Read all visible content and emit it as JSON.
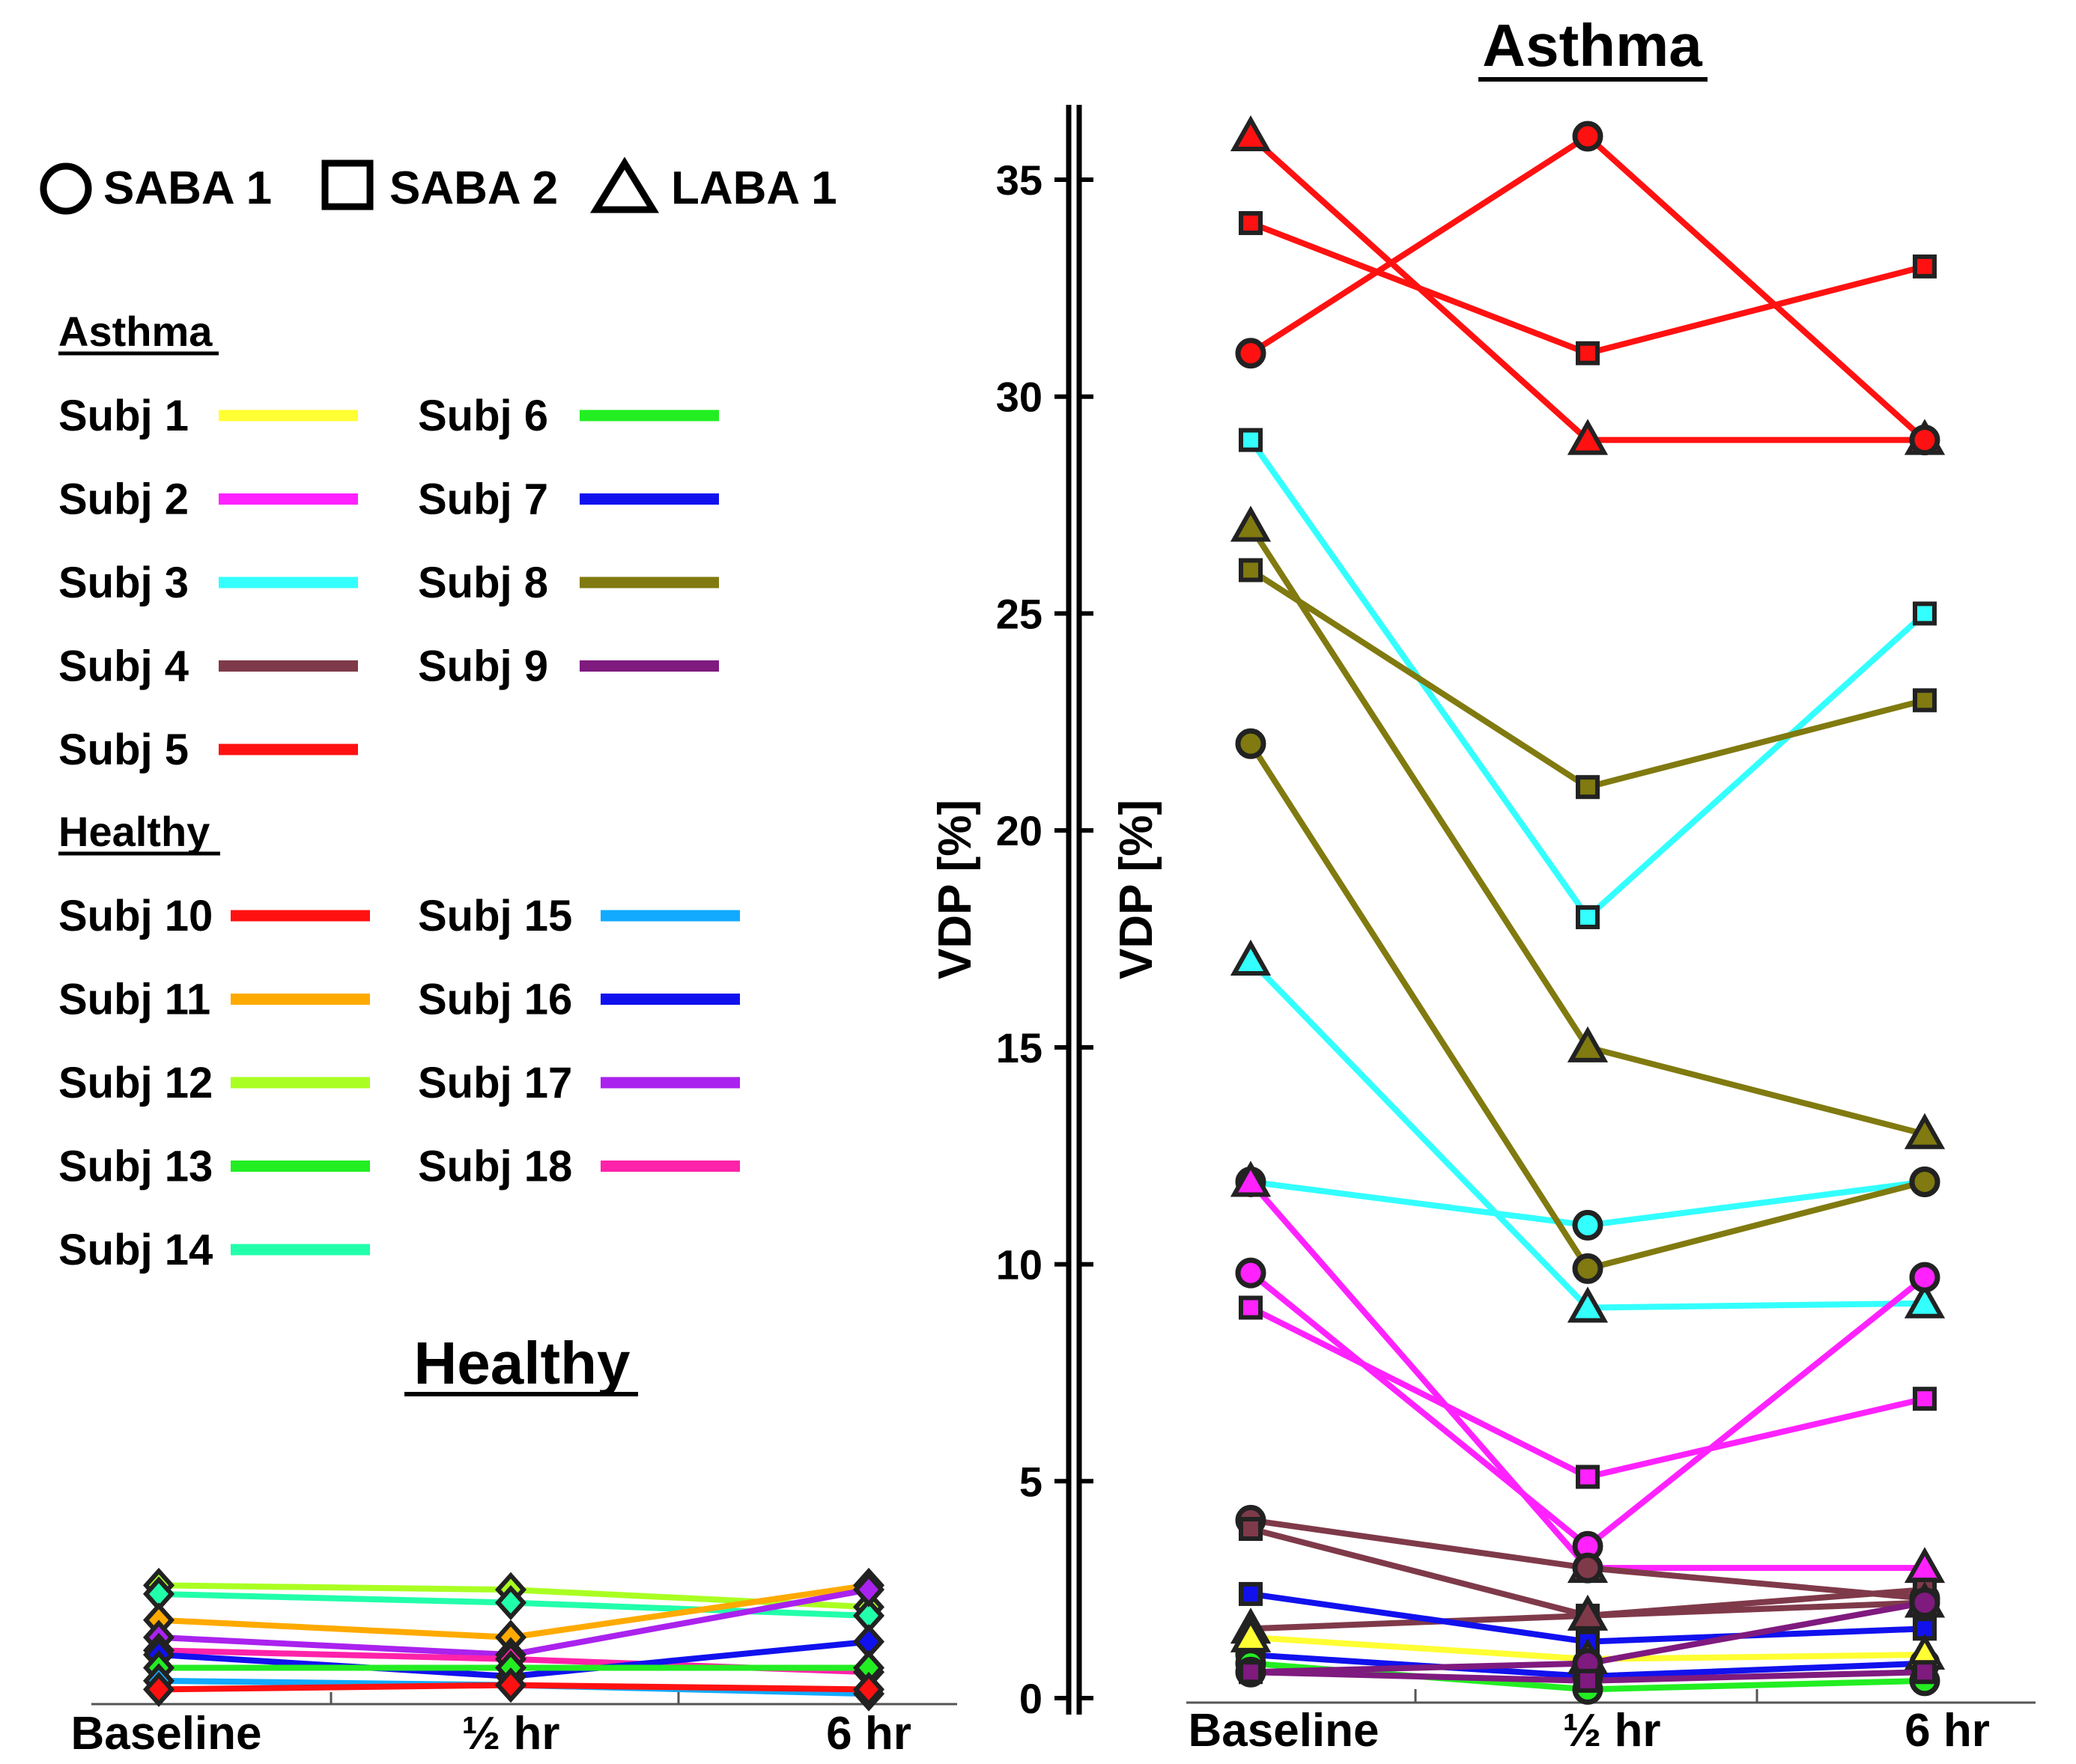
{
  "legend": {
    "markers": [
      {
        "shape": "circle",
        "label": "SABA 1"
      },
      {
        "shape": "square",
        "label": "SABA 2"
      },
      {
        "shape": "triangle",
        "label": "LABA 1"
      }
    ],
    "asthma_heading": "Asthma",
    "healthy_heading": "Healthy",
    "asthma_subjects": [
      {
        "label": "Subj 1",
        "color": "#ffff33"
      },
      {
        "label": "Subj 2",
        "color": "#ff22ff"
      },
      {
        "label": "Subj 3",
        "color": "#33ffff"
      },
      {
        "label": "Subj 4",
        "color": "#7f3a4a"
      },
      {
        "label": "Subj 5",
        "color": "#ff1111"
      },
      {
        "label": "Subj 6",
        "color": "#22ee22"
      },
      {
        "label": "Subj 7",
        "color": "#1111ee"
      },
      {
        "label": "Subj 8",
        "color": "#807a10"
      },
      {
        "label": "Subj 9",
        "color": "#7f1a7f"
      }
    ],
    "healthy_subjects": [
      {
        "label": "Subj 10",
        "color": "#ff1111"
      },
      {
        "label": "Subj 11",
        "color": "#ffaa00"
      },
      {
        "label": "Subj 12",
        "color": "#aaff22"
      },
      {
        "label": "Subj 13",
        "color": "#22ee22"
      },
      {
        "label": "Subj 14",
        "color": "#22ffaa"
      },
      {
        "label": "Subj 15",
        "color": "#11aaff"
      },
      {
        "label": "Subj 16",
        "color": "#1111ee"
      },
      {
        "label": "Subj 17",
        "color": "#aa22ee"
      },
      {
        "label": "Subj 18",
        "color": "#ff22aa"
      }
    ]
  },
  "y_axis_label": "VDP [%]",
  "chart_data": [
    {
      "type": "line",
      "title": "Asthma",
      "categories": [
        "Baseline",
        "½ hr",
        "6 hr"
      ],
      "ylabel": "VDP [%]",
      "ylim": [
        0,
        36
      ],
      "yticks": [
        0,
        5,
        10,
        15,
        20,
        25,
        30,
        35
      ],
      "series": [
        {
          "subject": "Subj 5",
          "marker": "triangle",
          "color": "#ff1111",
          "values": [
            36,
            29,
            29
          ]
        },
        {
          "subject": "Subj 5",
          "marker": "square",
          "color": "#ff1111",
          "values": [
            34,
            31,
            33
          ]
        },
        {
          "subject": "Subj 5",
          "marker": "circle",
          "color": "#ff1111",
          "values": [
            31,
            36,
            29
          ]
        },
        {
          "subject": "Subj 3",
          "marker": "square",
          "color": "#33ffff",
          "values": [
            29,
            18,
            25
          ]
        },
        {
          "subject": "Subj 3",
          "marker": "triangle",
          "color": "#33ffff",
          "values": [
            17,
            9,
            9.1
          ]
        },
        {
          "subject": "Subj 3",
          "marker": "circle",
          "color": "#33ffff",
          "values": [
            11.9,
            10.9,
            11.9
          ]
        },
        {
          "subject": "Subj 8",
          "marker": "triangle",
          "color": "#807a10",
          "values": [
            27,
            15,
            13
          ]
        },
        {
          "subject": "Subj 8",
          "marker": "square",
          "color": "#807a10",
          "values": [
            26,
            21,
            23
          ]
        },
        {
          "subject": "Subj 8",
          "marker": "circle",
          "color": "#807a10",
          "values": [
            22,
            9.9,
            11.9
          ]
        },
        {
          "subject": "Subj 2",
          "marker": "triangle",
          "color": "#ff22ff",
          "values": [
            11.9,
            3,
            3
          ]
        },
        {
          "subject": "Subj 2",
          "marker": "circle",
          "color": "#ff22ff",
          "values": [
            9.8,
            3.5,
            9.7
          ]
        },
        {
          "subject": "Subj 2",
          "marker": "square",
          "color": "#ff22ff",
          "values": [
            9,
            5.1,
            6.9
          ]
        },
        {
          "subject": "Subj 4",
          "marker": "circle",
          "color": "#7f3a4a",
          "values": [
            4.1,
            3,
            2.3
          ]
        },
        {
          "subject": "Subj 4",
          "marker": "square",
          "color": "#7f3a4a",
          "values": [
            3.9,
            1.9,
            2.5
          ]
        },
        {
          "subject": "Subj 4",
          "marker": "triangle",
          "color": "#7f3a4a",
          "values": [
            1.6,
            1.9,
            2.2
          ]
        },
        {
          "subject": "Subj 7",
          "marker": "square",
          "color": "#1111ee",
          "values": [
            2.4,
            1.3,
            1.6
          ]
        },
        {
          "subject": "Subj 7",
          "marker": "circle",
          "color": "#1111ee",
          "values": [
            1,
            0.5,
            0.8
          ]
        },
        {
          "subject": "Subj 1",
          "marker": "triangle",
          "color": "#ffff33",
          "values": [
            1.4,
            0.9,
            1
          ]
        },
        {
          "subject": "Subj 6",
          "marker": "circle",
          "color": "#22ee22",
          "values": [
            0.8,
            0.2,
            0.4
          ]
        },
        {
          "subject": "Subj 9",
          "marker": "circle",
          "color": "#7f1a7f",
          "values": [
            0.6,
            0.8,
            2.2
          ]
        },
        {
          "subject": "Subj 9",
          "marker": "square",
          "color": "#7f1a7f",
          "values": [
            0.6,
            0.4,
            0.6
          ]
        }
      ]
    },
    {
      "type": "line",
      "title": "Healthy",
      "categories": [
        "Baseline",
        "½ hr",
        "6 hr"
      ],
      "ylabel": "VDP [%]",
      "ylim": [
        0,
        36
      ],
      "series": [
        {
          "subject": "Subj 12",
          "marker": "diamond",
          "color": "#aaff22",
          "values": [
            2.6,
            2.5,
            2.1
          ]
        },
        {
          "subject": "Subj 14",
          "marker": "diamond",
          "color": "#22ffaa",
          "values": [
            2.4,
            2.2,
            1.9
          ]
        },
        {
          "subject": "Subj 11",
          "marker": "diamond",
          "color": "#ffaa00",
          "values": [
            1.8,
            1.4,
            2.6
          ]
        },
        {
          "subject": "Subj 17",
          "marker": "diamond",
          "color": "#aa22ee",
          "values": [
            1.4,
            1,
            2.5
          ]
        },
        {
          "subject": "Subj 18",
          "marker": "diamond",
          "color": "#ff22aa",
          "values": [
            1.1,
            0.9,
            0.6
          ]
        },
        {
          "subject": "Subj 16",
          "marker": "diamond",
          "color": "#1111ee",
          "values": [
            1,
            0.5,
            1.3
          ]
        },
        {
          "subject": "Subj 13",
          "marker": "diamond",
          "color": "#22ee22",
          "values": [
            0.7,
            0.7,
            0.7
          ]
        },
        {
          "subject": "Subj 15",
          "marker": "diamond",
          "color": "#11aaff",
          "values": [
            0.4,
            0.3,
            0.1
          ]
        },
        {
          "subject": "Subj 10",
          "marker": "diamond",
          "color": "#ff1111",
          "values": [
            0.2,
            0.3,
            0.2
          ]
        }
      ]
    }
  ]
}
